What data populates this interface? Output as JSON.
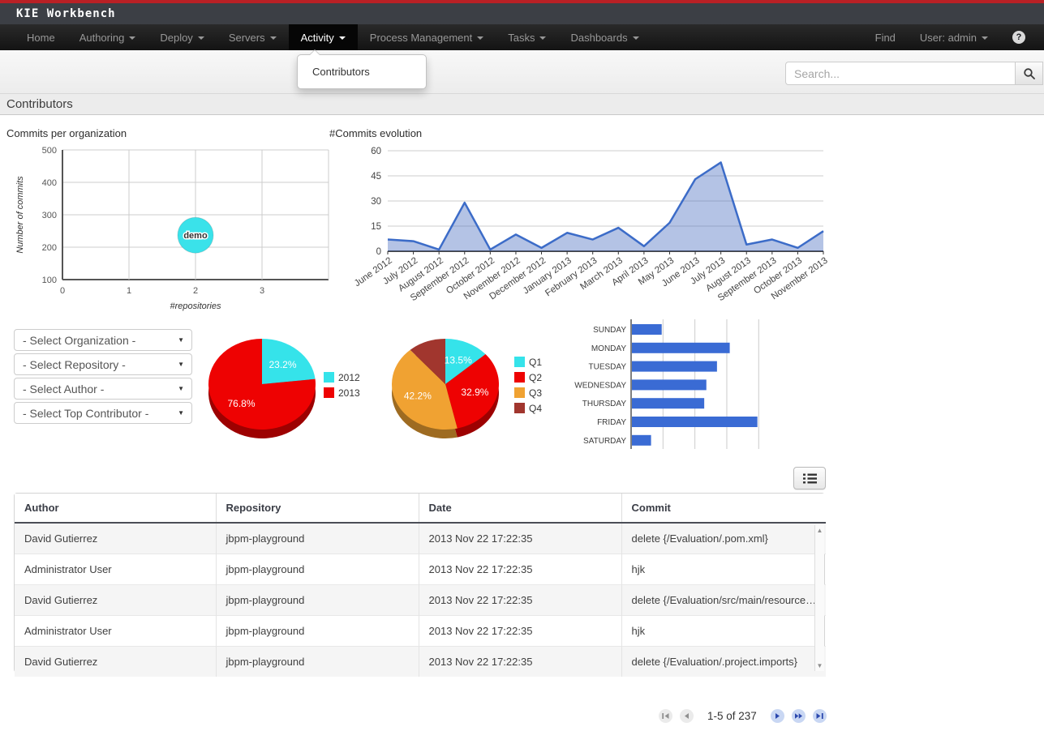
{
  "topbar": {
    "brand": "KIE Workbench"
  },
  "navbar": {
    "items": [
      {
        "label": "Home",
        "caret": false,
        "active": false
      },
      {
        "label": "Authoring",
        "caret": true,
        "active": false
      },
      {
        "label": "Deploy",
        "caret": true,
        "active": false
      },
      {
        "label": "Servers",
        "caret": true,
        "active": false
      },
      {
        "label": "Activity",
        "caret": true,
        "active": true
      },
      {
        "label": "Process Management",
        "caret": true,
        "active": false
      },
      {
        "label": "Tasks",
        "caret": true,
        "active": false
      },
      {
        "label": "Dashboards",
        "caret": true,
        "active": false
      }
    ],
    "find_label": "Find",
    "user_label": "User: admin",
    "help_icon": "?"
  },
  "activity_menu": {
    "items": [
      "Contributors"
    ]
  },
  "search": {
    "placeholder": "Search..."
  },
  "page": {
    "title": "Contributors"
  },
  "filters": [
    {
      "name": "organization",
      "value": "- Select Organization -"
    },
    {
      "name": "repository",
      "value": "- Select Repository -"
    },
    {
      "name": "author",
      "value": "- Select Author -"
    },
    {
      "name": "top-contributor",
      "value": "- Select Top Contributor -"
    }
  ],
  "ui_icons": {
    "scroll_up": "▲",
    "scroll_down": "▼",
    "select_caret": "▼"
  },
  "chart_data": [
    {
      "type": "scatter",
      "title": "Commits per organization",
      "xlabel": "#repositories",
      "ylabel": "Number of commits",
      "xlim": [
        0,
        4
      ],
      "xticks": [
        0,
        1,
        2,
        3
      ],
      "ylim": [
        100,
        500
      ],
      "yticks": [
        100,
        200,
        300,
        400,
        500
      ],
      "grid": true,
      "points": [
        {
          "label": "demo",
          "x": 2,
          "y": 237,
          "radius": 22,
          "color": "#3ae2ea"
        }
      ]
    },
    {
      "type": "area",
      "title": "#Commits evolution",
      "x": [
        "June 2012",
        "July 2012",
        "August 2012",
        "September 2012",
        "October 2012",
        "November 2012",
        "December 2012",
        "January 2013",
        "February 2013",
        "March 2013",
        "April 2013",
        "May 2013",
        "June 2013",
        "July 2013",
        "August 2013",
        "September 2013",
        "October 2013",
        "November 2013"
      ],
      "values": [
        7,
        6,
        1,
        29,
        1,
        10,
        2,
        11,
        7,
        14,
        3,
        17,
        43,
        53,
        4,
        7,
        2,
        12
      ],
      "ylim": [
        0,
        60
      ],
      "yticks": [
        0,
        15,
        30,
        45,
        60
      ],
      "line_color": "#3c6cc8",
      "fill_color": "rgba(76,112,193,0.42)"
    },
    {
      "type": "pie",
      "slices": [
        {
          "label": "2012",
          "value": 23.2,
          "display": "23.2%",
          "color": "#35e3ea"
        },
        {
          "label": "2013",
          "value": 76.8,
          "display": "76.8%",
          "color": "#ee0202"
        }
      ],
      "legend_position": "right"
    },
    {
      "type": "pie",
      "slices": [
        {
          "label": "Q1",
          "value": 13.5,
          "display": "13.5%",
          "color": "#35e3ea"
        },
        {
          "label": "Q2",
          "value": 32.9,
          "display": "32.9%",
          "color": "#ee0202"
        },
        {
          "label": "Q3",
          "value": 42.2,
          "display": "42.2%",
          "color": "#f0a232"
        },
        {
          "label": "Q4",
          "value": 11.4,
          "display": "",
          "color": "#a1362e"
        }
      ],
      "legend_position": "right"
    },
    {
      "type": "bar",
      "orientation": "horizontal",
      "categories": [
        "SUNDAY",
        "MONDAY",
        "TUESDAY",
        "WEDNESDAY",
        "THURSDAY",
        "FRIDAY",
        "SATURDAY"
      ],
      "values": [
        14,
        46,
        40,
        35,
        34,
        59,
        9
      ],
      "xlim": [
        0,
        60
      ],
      "gridlines": [
        15,
        30,
        45,
        60
      ],
      "bar_color": "#3a6bd4"
    }
  ],
  "table": {
    "columns": [
      "Author",
      "Repository",
      "Date",
      "Commit"
    ],
    "rows": [
      [
        "David Gutierrez",
        "jbpm-playground",
        "2013 Nov 22 17:22:35",
        "delete {/Evaluation/.pom.xml}"
      ],
      [
        "Administrator User",
        "jbpm-playground",
        "2013 Nov 22 17:22:35",
        "hjk"
      ],
      [
        "David Gutierrez",
        "jbpm-playground",
        "2013 Nov 22 17:22:35",
        "delete {/Evaluation/src/main/resource…"
      ],
      [
        "Administrator User",
        "jbpm-playground",
        "2013 Nov 22 17:22:35",
        "hjk"
      ],
      [
        "David Gutierrez",
        "jbpm-playground",
        "2013 Nov 22 17:22:35",
        "delete {/Evaluation/.project.imports}"
      ]
    ]
  },
  "pagination": {
    "label": "1-5 of 237",
    "buttons": [
      {
        "name": "first-page",
        "enabled": false
      },
      {
        "name": "previous-page",
        "enabled": false
      },
      {
        "name": "next-page",
        "enabled": true
      },
      {
        "name": "fast-forward",
        "enabled": true
      },
      {
        "name": "last-page",
        "enabled": true
      }
    ]
  }
}
